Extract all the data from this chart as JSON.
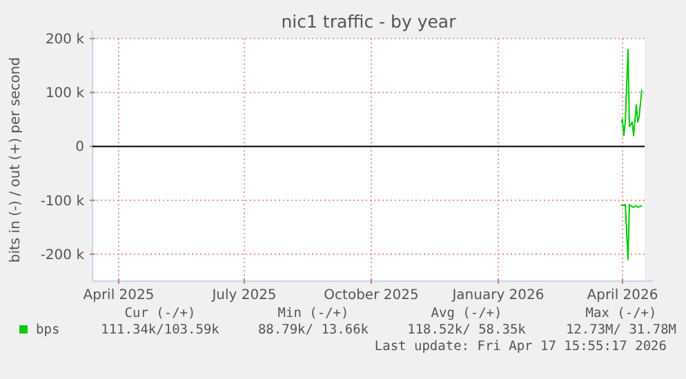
{
  "chart_data": {
    "type": "line",
    "title": "nic1 traffic - by year",
    "ylabel": "bits in (-) / out (+) per second",
    "xlim": [
      "2025-03-13",
      "2026-04-17"
    ],
    "xticks": [
      {
        "value": "2025-04-01",
        "label": "April 2025"
      },
      {
        "value": "2025-07-01",
        "label": "July 2025"
      },
      {
        "value": "2025-10-01",
        "label": "October 2025"
      },
      {
        "value": "2026-01-01",
        "label": "January 2026"
      },
      {
        "value": "2026-04-01",
        "label": "April 2026"
      }
    ],
    "ylim": [
      -250000,
      200000
    ],
    "yticks": [
      {
        "value": -200000,
        "label": "-200 k"
      },
      {
        "value": -100000,
        "label": "-100 k"
      },
      0,
      {
        "value": 100000,
        "label": "100 k"
      },
      {
        "value": 200000,
        "label": "200 k"
      }
    ],
    "grid": true,
    "legend": "bottom left",
    "marker": "none",
    "line_style": "solid",
    "ref_lines": [
      {
        "axis": "y",
        "value": 0,
        "color": "#000000"
      }
    ],
    "series": [
      {
        "name": "bps",
        "color": "#00cc00",
        "x": [
          "2026-03-31",
          "2026-04-01",
          "2026-04-02",
          "2026-04-03",
          "2026-04-05",
          "2026-04-06",
          "2026-04-08",
          "2026-04-09",
          "2026-04-11",
          "2026-04-12",
          "2026-04-13",
          "2026-04-15"
        ],
        "values": [
          45000,
          50000,
          20000,
          45000,
          180000,
          37000,
          45000,
          20000,
          77000,
          45000,
          54000,
          105000
        ]
      },
      {
        "color": "#00cc00",
        "x": [
          "2026-03-31",
          "2026-04-01",
          "2026-04-03",
          "2026-04-05",
          "2026-04-06",
          "2026-04-08",
          "2026-04-09",
          "2026-04-11",
          "2026-04-12",
          "2026-04-15"
        ],
        "values": [
          -108000,
          -110000,
          -108000,
          -210000,
          -108000,
          -112000,
          -113000,
          -110000,
          -113000,
          -110000
        ]
      }
    ],
    "annotations": [
      "Cur (-/+)",
      "Min (-/+)",
      "Avg (-/+)",
      "Max (-/+)",
      "111.34k/103.59k",
      "88.79k/ 13.66k",
      "118.52k/ 58.35k",
      "12.73M/ 31.78M",
      "Last update: Fri Apr 17 15:55:17 2026"
    ]
  }
}
